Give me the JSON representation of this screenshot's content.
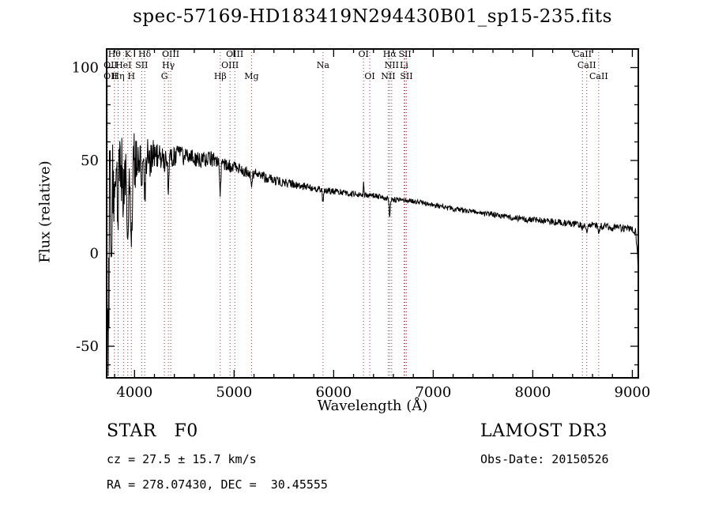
{
  "title": "spec-57169-HD183419N294430B01_sp15-235.fits",
  "colors": {
    "background": "#ffffff",
    "spectrum": "#000000",
    "axis": "#000000",
    "line_marker": "#993333",
    "text": "#000000"
  },
  "footer": {
    "class_label": "STAR   F0",
    "survey": "LAMOST DR3",
    "cz": "cz = 27.5 ± 15.7 km/s",
    "obs_date": "Obs-Date: 20150526",
    "coords": "RA = 278.07430, DEC =  30.45555"
  },
  "chart_data": {
    "type": "line",
    "title": "spec-57169-HD183419N294430B01_sp15-235.fits",
    "xlabel": "Wavelength (Å)",
    "ylabel": "Flux (relative)",
    "xlim": [
      3720,
      9060
    ],
    "ylim": [
      -67,
      110
    ],
    "xticks": [
      4000,
      5000,
      6000,
      7000,
      8000,
      9000
    ],
    "yticks": [
      -50,
      0,
      50,
      100
    ],
    "x_minor_step": 200,
    "y_minor_step": 10,
    "grid": false,
    "legend": "none",
    "noise_seed": 20150526,
    "sample_step": 4,
    "continuum": [
      [
        3720,
        12
      ],
      [
        3740,
        25
      ],
      [
        3760,
        35
      ],
      [
        3800,
        42
      ],
      [
        3850,
        46
      ],
      [
        3900,
        48
      ],
      [
        3950,
        46
      ],
      [
        4000,
        50
      ],
      [
        4060,
        48
      ],
      [
        4120,
        51
      ],
      [
        4200,
        52
      ],
      [
        4300,
        50
      ],
      [
        4360,
        52
      ],
      [
        4440,
        53
      ],
      [
        4520,
        52
      ],
      [
        4600,
        51
      ],
      [
        4680,
        50
      ],
      [
        4760,
        51
      ],
      [
        4840,
        50
      ],
      [
        4900,
        48
      ],
      [
        4960,
        47
      ],
      [
        5020,
        46
      ],
      [
        5100,
        44
      ],
      [
        5200,
        43
      ],
      [
        5300,
        41
      ],
      [
        5400,
        39.5
      ],
      [
        5500,
        38
      ],
      [
        5600,
        37
      ],
      [
        5700,
        36
      ],
      [
        5800,
        35
      ],
      [
        5900,
        34
      ],
      [
        6000,
        33.5
      ],
      [
        6100,
        33
      ],
      [
        6200,
        32
      ],
      [
        6300,
        31.5
      ],
      [
        6400,
        31
      ],
      [
        6500,
        30
      ],
      [
        6600,
        29
      ],
      [
        6700,
        28.5
      ],
      [
        6800,
        28
      ],
      [
        6900,
        27
      ],
      [
        7000,
        26
      ],
      [
        7100,
        25
      ],
      [
        7200,
        24
      ],
      [
        7300,
        23
      ],
      [
        7400,
        22.5
      ],
      [
        7500,
        21.5
      ],
      [
        7600,
        21
      ],
      [
        7700,
        20
      ],
      [
        7800,
        19
      ],
      [
        7900,
        18.5
      ],
      [
        8000,
        18
      ],
      [
        8100,
        17.5
      ],
      [
        8200,
        17
      ],
      [
        8300,
        16.5
      ],
      [
        8400,
        16
      ],
      [
        8500,
        15.5
      ],
      [
        8600,
        15
      ],
      [
        8700,
        14.5
      ],
      [
        8800,
        14
      ],
      [
        8900,
        13.5
      ],
      [
        8960,
        14
      ],
      [
        9000,
        13
      ],
      [
        9030,
        12
      ],
      [
        9060,
        4
      ]
    ],
    "noise_amplitude": [
      [
        3720,
        55
      ],
      [
        3745,
        50
      ],
      [
        3780,
        30
      ],
      [
        3830,
        22
      ],
      [
        3880,
        18
      ],
      [
        3930,
        16
      ],
      [
        3970,
        15
      ],
      [
        4000,
        15
      ],
      [
        4100,
        12
      ],
      [
        4200,
        9
      ],
      [
        4300,
        7
      ],
      [
        4400,
        5.5
      ],
      [
        4600,
        4.5
      ],
      [
        4800,
        4
      ],
      [
        5000,
        3.2
      ],
      [
        5300,
        2.6
      ],
      [
        5600,
        2.2
      ],
      [
        6000,
        1.8
      ],
      [
        6500,
        1.5
      ],
      [
        7000,
        1.4
      ],
      [
        7500,
        1.5
      ],
      [
        8000,
        1.7
      ],
      [
        8500,
        1.9
      ],
      [
        9000,
        2.2
      ],
      [
        9060,
        3
      ]
    ],
    "features": [
      [
        3740,
        -75,
        6
      ],
      [
        3752,
        60,
        5
      ],
      [
        3768,
        -50,
        5
      ],
      [
        3798,
        -30,
        6
      ],
      [
        3835,
        -28,
        6
      ],
      [
        3889,
        -22,
        6
      ],
      [
        3933,
        -55,
        7
      ],
      [
        3968,
        -45,
        7
      ],
      [
        4102,
        -22,
        7
      ],
      [
        4340,
        -16,
        6
      ],
      [
        4861,
        -16,
        6
      ],
      [
        5175,
        -6,
        8
      ],
      [
        5893,
        -6,
        6
      ],
      [
        6300,
        7,
        3
      ],
      [
        6563,
        -9,
        6
      ],
      [
        8498,
        -3,
        6
      ],
      [
        8542,
        -4,
        6
      ],
      [
        8662,
        -4,
        6
      ],
      [
        9055,
        -9,
        8
      ]
    ],
    "spectral_lines": [
      {
        "wl": 3712,
        "label": "OII",
        "row": 3
      },
      {
        "wl": 3727,
        "label": "OII",
        "row": 2
      },
      {
        "wl": 3798,
        "label": "Hθ",
        "row": 1
      },
      {
        "wl": 3835,
        "label": "Hη",
        "row": 3
      },
      {
        "wl": 3889,
        "label": "HeI",
        "row": 2
      },
      {
        "wl": 3933,
        "label": "K",
        "row": 1
      },
      {
        "wl": 3968,
        "label": "H",
        "row": 3
      },
      {
        "wl": 4072,
        "label": "SII",
        "row": 2
      },
      {
        "wl": 4102,
        "label": "Hδ",
        "row": 1
      },
      {
        "wl": 4300,
        "label": "G",
        "row": 3
      },
      {
        "wl": 4340,
        "label": "Hγ",
        "row": 2
      },
      {
        "wl": 4363,
        "label": "OIII",
        "row": 1
      },
      {
        "wl": 4861,
        "label": "Hβ",
        "row": 3
      },
      {
        "wl": 4959,
        "label": "OIII",
        "row": 2
      },
      {
        "wl": 5007,
        "label": "OIII",
        "row": 1
      },
      {
        "wl": 5175,
        "label": "Mg",
        "row": 3
      },
      {
        "wl": 5893,
        "label": "Na",
        "row": 2
      },
      {
        "wl": 6300,
        "label": "OI",
        "row": 1
      },
      {
        "wl": 6363,
        "label": "OI",
        "row": 3
      },
      {
        "wl": 6548,
        "label": "NII",
        "row": 3
      },
      {
        "wl": 6563,
        "label": "Hα",
        "row": 1
      },
      {
        "wl": 6583,
        "label": "NII",
        "row": 2
      },
      {
        "wl": 6707,
        "label": "Li",
        "row": 2
      },
      {
        "wl": 6716,
        "label": "SII",
        "row": 1
      },
      {
        "wl": 6731,
        "label": "SII",
        "row": 3
      },
      {
        "wl": 8498,
        "label": "CaII",
        "row": 1
      },
      {
        "wl": 8542,
        "label": "CaII",
        "row": 2
      },
      {
        "wl": 8662,
        "label": "CaII",
        "row": 3
      }
    ]
  }
}
